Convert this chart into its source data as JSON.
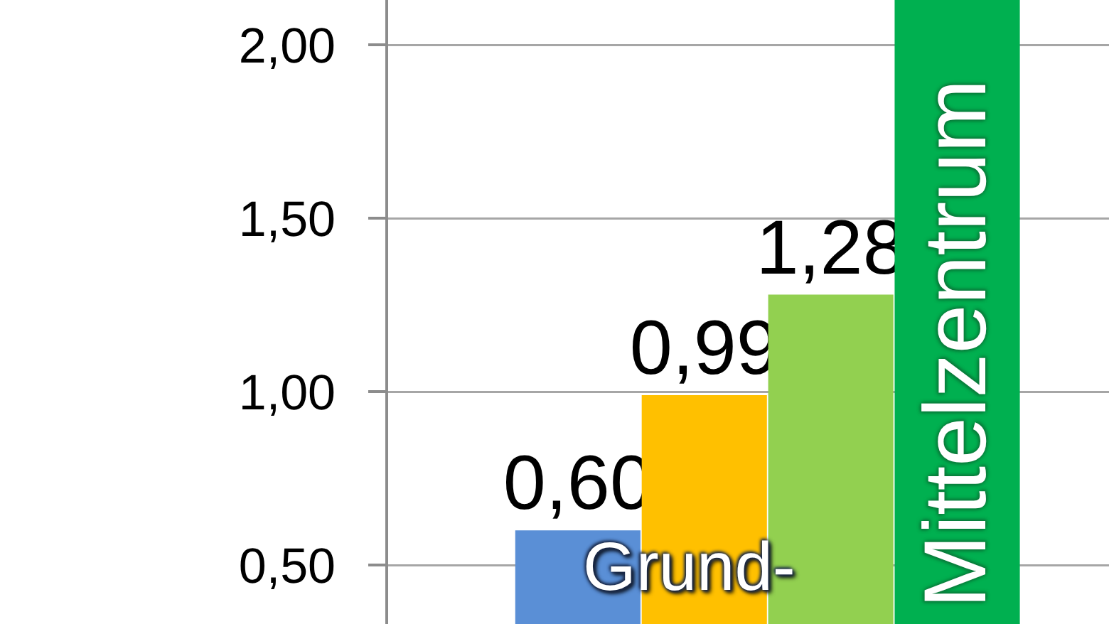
{
  "chart_data": {
    "type": "bar",
    "categories": [
      null,
      null,
      null,
      null
    ],
    "values": [
      0.6,
      0.99,
      1.28,
      2.13
    ],
    "colors": [
      "#5a8fd6",
      "#ffc000",
      "#92d050",
      "#00b050"
    ],
    "value_labels": [
      "0,60",
      "0,99",
      "1,28",
      null
    ],
    "ylim": [
      0.33,
      2.13
    ],
    "yticks": [
      {
        "value": 0.5,
        "label": "0,50"
      },
      {
        "value": 1.0,
        "label": "1,00"
      },
      {
        "value": 1.5,
        "label": "1,50"
      },
      {
        "value": 2.0,
        "label": "2,00"
      }
    ],
    "grid": "y",
    "tick_labels": "y",
    "annotations": [
      "Grund-",
      "Mittelzentrum"
    ]
  }
}
